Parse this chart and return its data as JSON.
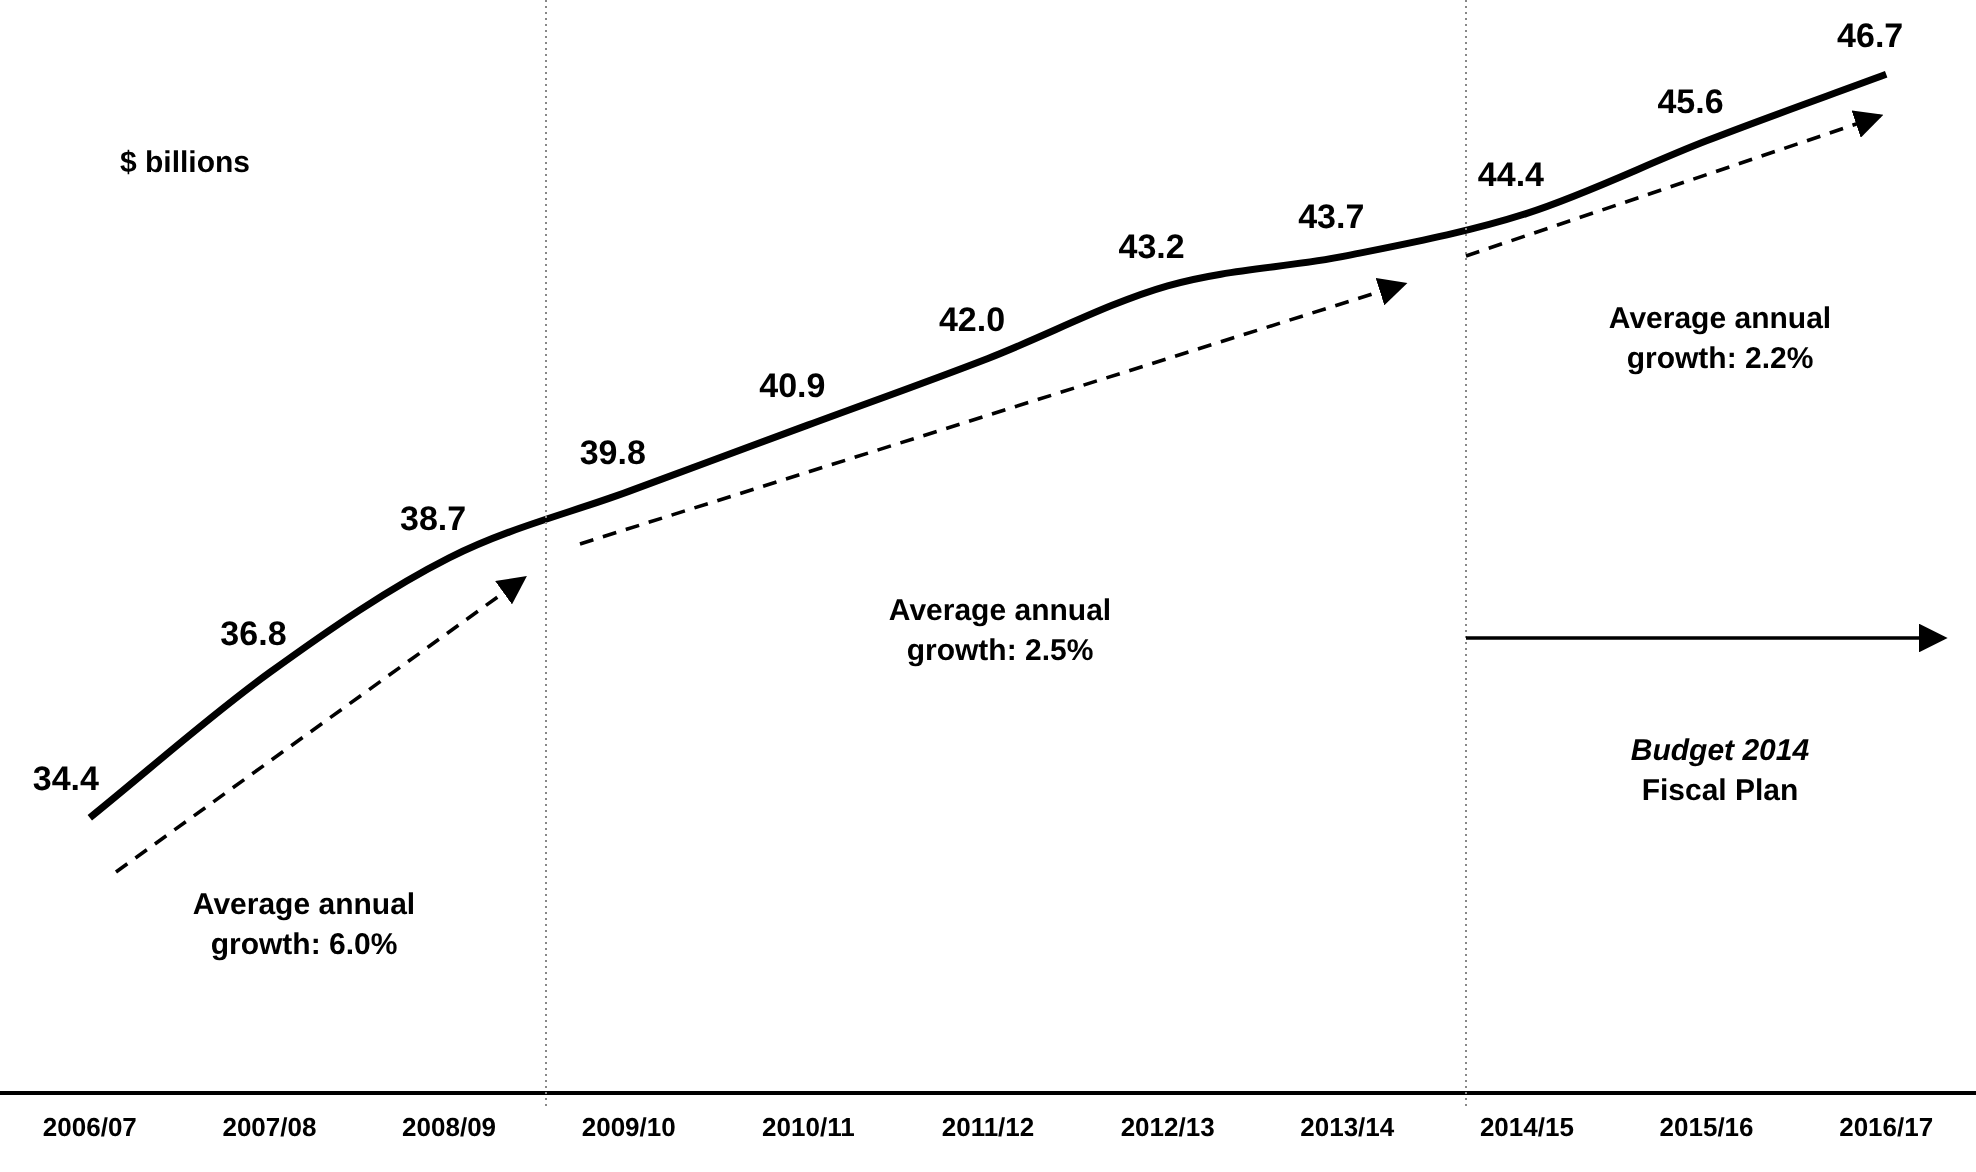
{
  "chart_data": {
    "type": "line",
    "categories": [
      "2006/07",
      "2007/08",
      "2008/09",
      "2009/10",
      "2010/11",
      "2011/12",
      "2012/13",
      "2013/14",
      "2014/15",
      "2015/16",
      "2016/17"
    ],
    "series": [
      {
        "color": "#000000",
        "values": [
          34.4,
          36.8,
          38.7,
          39.8,
          40.9,
          42.0,
          43.2,
          43.7,
          44.4,
          45.6,
          46.7
        ],
        "value_labels": [
          "34.4",
          "36.8",
          "38.7",
          "39.8",
          "40.9",
          "42.0",
          "43.2",
          "43.7",
          "44.4",
          "45.6",
          "46.7"
        ]
      }
    ],
    "tick_labels": "x",
    "grid": false,
    "legend": false,
    "marker": "none",
    "line_style": "solid",
    "annotations": [
      "$ billions",
      "Average annual growth: 6.0%",
      "Average annual growth: 2.5%",
      "Average annual growth: 2.2%",
      "Budget 2014\nFiscal Plan"
    ]
  }
}
